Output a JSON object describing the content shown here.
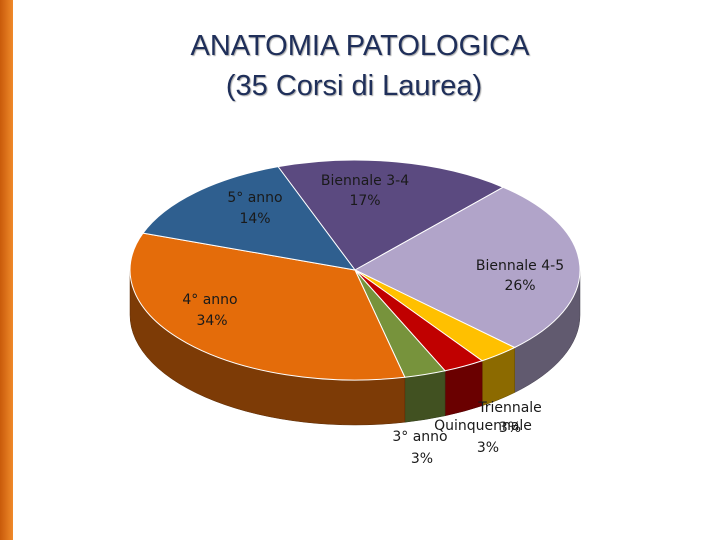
{
  "chart_data": {
    "type": "pie",
    "title": "ANATOMIA PATOLOGICA",
    "subtitle": "(35 Corsi di Laurea)",
    "categories": [
      "Biennale 3-4",
      "Biennale 4-5",
      "Triennale",
      "Quinquennale",
      "3° anno",
      "4° anno",
      "5° anno"
    ],
    "values": [
      17,
      26,
      3,
      3,
      3,
      34,
      14
    ],
    "value_labels": [
      "17%",
      "26%",
      "3%",
      "3%",
      "3%",
      "34%",
      "14%"
    ],
    "colors": [
      "#5b4a80",
      "#b1a4c9",
      "#ffc000",
      "#c00000",
      "#77933c",
      "#e46c0a",
      "#2f5f8f"
    ]
  }
}
